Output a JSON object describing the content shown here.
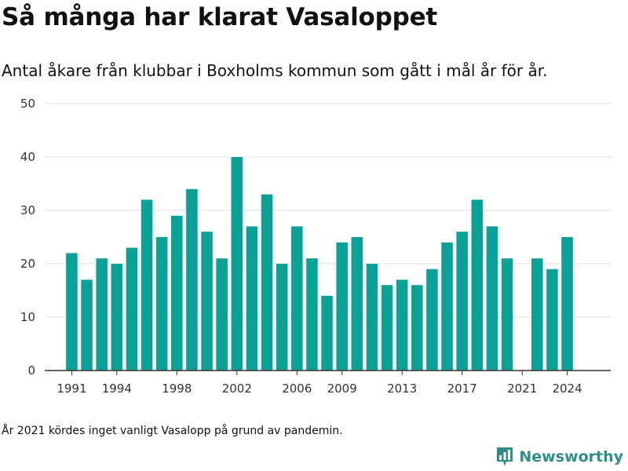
{
  "header": {
    "title": "Så många har klarat Vasaloppet",
    "subtitle": "Antal åkare från klubbar i Boxholms kommun som gått i mål år för år."
  },
  "footer": {
    "note": "År 2021 kördes inget vanligt Vasalopp på grund av pandemin.",
    "brand": "Newsworthy",
    "brand_icon": "newsworthy-logo-icon"
  },
  "colors": {
    "bar": "#0aa196",
    "grid": "#dddddd",
    "axis": "#333333",
    "brand": "#2e8f88"
  },
  "chart_data": {
    "type": "bar",
    "title": "Så många har klarat Vasaloppet",
    "subtitle": "Antal åkare från klubbar i Boxholms kommun som gått i mål år för år.",
    "xlabel": "",
    "ylabel": "",
    "grid": true,
    "legend": "none",
    "x": [
      1991,
      1992,
      1993,
      1994,
      1995,
      1996,
      1997,
      1998,
      1999,
      2000,
      2001,
      2002,
      2003,
      2004,
      2005,
      2006,
      2007,
      2008,
      2009,
      2010,
      2011,
      2012,
      2013,
      2014,
      2015,
      2016,
      2017,
      2018,
      2019,
      2020,
      2021,
      2022,
      2023,
      2024
    ],
    "values": [
      22,
      17,
      21,
      20,
      23,
      32,
      25,
      29,
      34,
      26,
      21,
      40,
      27,
      33,
      20,
      27,
      21,
      14,
      24,
      25,
      20,
      16,
      17,
      16,
      19,
      24,
      26,
      32,
      27,
      21,
      null,
      21,
      19,
      25
    ],
    "ylim": [
      0,
      50
    ],
    "yticks": [
      0,
      10,
      20,
      30,
      40,
      50
    ],
    "xticks": [
      1991,
      1994,
      1998,
      2002,
      2006,
      2009,
      2013,
      2017,
      2021,
      2024
    ],
    "xlim": [
      1989.2,
      2026.9
    ]
  }
}
